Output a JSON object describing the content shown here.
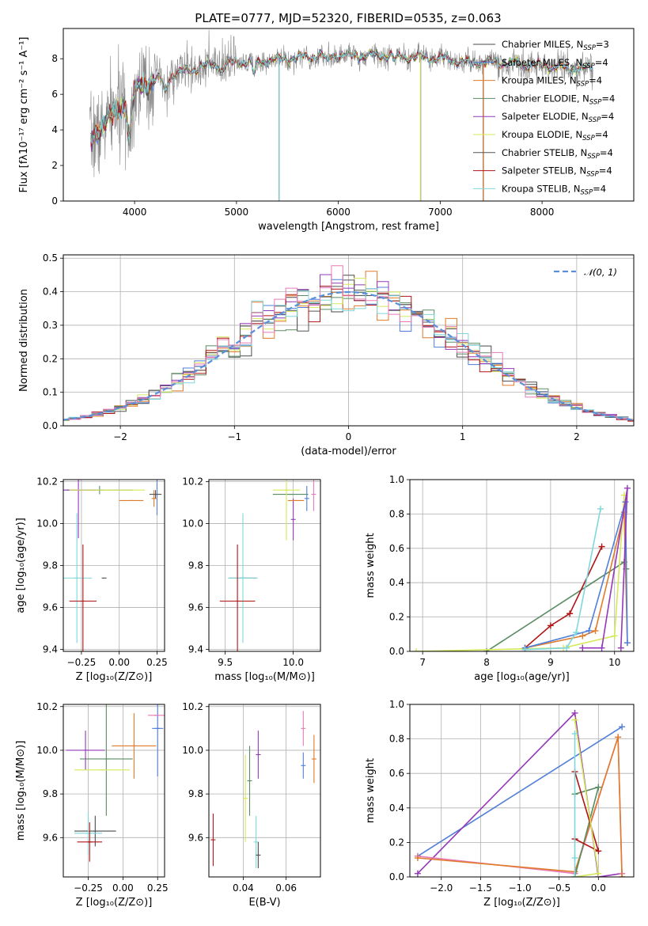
{
  "figure": {
    "title": "PLATE=0777, MJD=52320, FIBERID=0535, z=0.063"
  },
  "colors": {
    "Chabrier MILES": "#4a4a4a",
    "Salpeter MILES": "#4f7fd8",
    "Kroupa MILES": "#e07b2a",
    "Chabrier ELODIE": "#5a8c63",
    "Salpeter ELODIE": "#9438b8",
    "Kroupa ELODIE": "#d5e85a",
    "Chabrier STELIB": "#555555",
    "Salpeter STELIB": "#b01515",
    "Kroupa STELIB": "#7fd7dc",
    "data": "#888888",
    "gauss": "#5b8fd9",
    "pink": "#e87ab8"
  },
  "chart_data": [
    {
      "id": "spectrum",
      "type": "line",
      "xlabel": "wavelength [Angstrom, rest frame]",
      "ylabel": "Flux [fλ10⁻¹⁷ erg cm⁻² s⁻¹ A⁻¹]",
      "xlim": [
        3300,
        8900
      ],
      "ylim": [
        0,
        9.7
      ],
      "xticks": [
        4000,
        5000,
        6000,
        7000,
        8000
      ],
      "yticks": [
        0,
        2,
        4,
        6,
        8
      ],
      "grid": false,
      "legend_position": "right",
      "legend": [
        {
          "model": "Chabrier MILES",
          "text": "Chabrier MILES, N",
          "sub": "SSP",
          "suffix": "=3"
        },
        {
          "model": "Salpeter MILES",
          "text": "Salpeter MILES, N",
          "sub": "SSP",
          "suffix": "=4"
        },
        {
          "model": "Kroupa MILES",
          "text": "Kroupa MILES, N",
          "sub": "SSP",
          "suffix": "=4"
        },
        {
          "model": "Chabrier ELODIE",
          "text": "Chabrier ELODIE, N",
          "sub": "SSP",
          "suffix": "=4"
        },
        {
          "model": "Salpeter ELODIE",
          "text": "Salpeter ELODIE, N",
          "sub": "SSP",
          "suffix": "=4"
        },
        {
          "model": "Kroupa ELODIE",
          "text": "Kroupa ELODIE, N",
          "sub": "SSP",
          "suffix": "=4"
        },
        {
          "model": "Chabrier STELIB",
          "text": "Chabrier STELIB, N",
          "sub": "SSP",
          "suffix": "=4"
        },
        {
          "model": "Salpeter STELIB",
          "text": "Salpeter STELIB, N",
          "sub": "SSP",
          "suffix": "=4"
        },
        {
          "model": "Kroupa STELIB",
          "text": "Kroupa STELIB, N",
          "sub": "SSP",
          "suffix": "=4"
        }
      ],
      "continuum": [
        [
          3570,
          3.4
        ],
        [
          3650,
          4.0
        ],
        [
          3750,
          4.7
        ],
        [
          3850,
          5.2
        ],
        [
          3950,
          5.6
        ],
        [
          4000,
          6.2
        ],
        [
          4100,
          6.6
        ],
        [
          4200,
          6.8
        ],
        [
          4300,
          6.9
        ],
        [
          4500,
          7.3
        ],
        [
          4700,
          7.6
        ],
        [
          5000,
          7.8
        ],
        [
          5200,
          7.85
        ],
        [
          5500,
          8.0
        ],
        [
          5700,
          8.1
        ],
        [
          5900,
          8.25
        ],
        [
          6100,
          8.15
        ],
        [
          6300,
          8.2
        ],
        [
          6500,
          8.2
        ],
        [
          6700,
          8.1
        ],
        [
          6900,
          8.05
        ],
        [
          7100,
          7.95
        ],
        [
          7300,
          7.75
        ],
        [
          7500,
          7.8
        ],
        [
          7700,
          7.75
        ],
        [
          8000,
          7.6
        ],
        [
          8300,
          7.45
        ],
        [
          8500,
          7.5
        ]
      ],
      "dips": [
        {
          "x": 3950,
          "depth": 2.0
        },
        {
          "x": 4300,
          "depth": 0.8
        },
        {
          "x": 4860,
          "depth": 0.4
        },
        {
          "x": 5175,
          "depth": 0.7
        },
        {
          "x": 5890,
          "depth": 0.5
        },
        {
          "x": 6560,
          "depth": 0.3
        }
      ],
      "data_spikes_to_zero": [
        5420,
        6810,
        7420
      ],
      "model_spikes": [
        {
          "x": 5415,
          "model": "Kroupa STELIB"
        },
        {
          "x": 6805,
          "model": "Kroupa ELODIE"
        },
        {
          "x": 7425,
          "model": "Kroupa MILES"
        }
      ]
    },
    {
      "id": "residuals",
      "type": "histogram",
      "xlabel": "(data-model)/error",
      "ylabel": "Normed distribution",
      "xlim": [
        -2.5,
        2.5
      ],
      "ylim": [
        0,
        0.51
      ],
      "xticks": [
        -2,
        -1,
        0,
        1,
        2
      ],
      "yticks": [
        0.0,
        0.1,
        0.2,
        0.3,
        0.4,
        0.5
      ],
      "grid": true,
      "legend_position": "top-right",
      "legend": [
        "𝒩(0, 1)"
      ],
      "bin_width": 0.1,
      "sigma": 1,
      "mean": 0
    },
    {
      "id": "z-age",
      "type": "errorbar",
      "xlabel": "Z [log₁₀(Z/Z⊙)]",
      "ylabel": "age  [log₁₀(age/yr)]",
      "xlim": [
        -0.37,
        0.3
      ],
      "ylim": [
        9.39,
        10.21
      ],
      "xticks": [
        -0.25,
        0.0,
        0.25
      ],
      "yticks": [
        9.4,
        9.6,
        9.8,
        10.0,
        10.2
      ],
      "grid": true,
      "points": [
        {
          "model": "Chabrier MILES",
          "x": -0.1,
          "xerr": 0.0,
          "y": 9.74,
          "yerr": 0.0
        },
        {
          "model": "Kroupa STELIB",
          "x": -0.28,
          "xerr": 0.1,
          "y": 9.74,
          "yerr": 0.31
        },
        {
          "model": "Salpeter STELIB",
          "x": -0.24,
          "xerr": 0.09,
          "y": 9.63,
          "yerr": 0.27
        },
        {
          "model": "Chabrier ELODIE",
          "x": -0.13,
          "xerr": 0.22,
          "y": 10.16,
          "yerr": 0.02
        },
        {
          "model": "Salpeter ELODIE",
          "x": -0.27,
          "xerr": 0.12,
          "y": 10.16,
          "yerr": 0.23
        },
        {
          "model": "Kroupa ELODIE",
          "x": -0.08,
          "xerr": 0.25,
          "y": 10.16,
          "yerr": 0.0
        },
        {
          "model": "Kroupa MILES",
          "x": 0.23,
          "xerr": 0.0,
          "y": 10.12,
          "yerr": 0.04
        },
        {
          "model": "Salpeter MILES",
          "x": 0.25,
          "xerr": 0.0,
          "y": 10.14,
          "yerr": 0.1
        },
        {
          "model": "Chabrier STELIB",
          "x": 0.24,
          "xerr": 0.04,
          "y": 10.14,
          "yerr": 0.02
        },
        {
          "model": "Kroupa MILES",
          "x": 0.08,
          "xerr": 0.08,
          "y": 10.11,
          "yerr": 0.0
        }
      ]
    },
    {
      "id": "mass-age",
      "type": "errorbar",
      "xlabel": "mass [log₁₀(M/M⊙)]",
      "ylabel": "",
      "xlim": [
        9.38,
        10.2
      ],
      "ylim": [
        9.39,
        10.21
      ],
      "xticks": [
        9.5,
        10.0
      ],
      "yticks": [
        9.4,
        9.6,
        9.8,
        10.0,
        10.2
      ],
      "grid": true,
      "points": [
        {
          "model": "Chabrier MILES",
          "x": 9.63,
          "xerr": 0.1,
          "y": 9.74,
          "yerr": 0.0
        },
        {
          "model": "Kroupa STELIB",
          "x": 9.63,
          "xerr": 0.11,
          "y": 9.74,
          "yerr": 0.31
        },
        {
          "model": "Salpeter STELIB",
          "x": 9.59,
          "xerr": 0.13,
          "y": 9.63,
          "yerr": 0.27
        },
        {
          "model": "Chabrier ELODIE",
          "x": 9.98,
          "xerr": 0.13,
          "y": 10.14,
          "yerr": 0.0
        },
        {
          "model": "Salpeter ELODIE",
          "x": 10.0,
          "xerr": 0.0,
          "y": 10.02,
          "yerr": 0.1
        },
        {
          "model": "Kroupa ELODIE",
          "x": 9.95,
          "xerr": 0.1,
          "y": 10.16,
          "yerr": 0.24
        },
        {
          "model": "Kroupa MILES",
          "x": 10.02,
          "xerr": 0.06,
          "y": 10.11,
          "yerr": 0.0
        },
        {
          "model": "Salpeter MILES",
          "x": 10.1,
          "xerr": 0.0,
          "y": 10.12,
          "yerr": 0.06
        },
        {
          "model": "pink",
          "x": 10.15,
          "xerr": 0.0,
          "y": 10.14,
          "yerr": 0.08
        }
      ]
    },
    {
      "id": "age-weight",
      "type": "line",
      "xlabel": "age  [log₁₀(age/yr)]",
      "ylabel": "mass weight",
      "xlim": [
        6.8,
        10.3
      ],
      "ylim": [
        0,
        1.0
      ],
      "xticks": [
        7,
        8,
        9,
        10
      ],
      "yticks": [
        0.0,
        0.2,
        0.4,
        0.6,
        0.8,
        1.0
      ],
      "grid": true,
      "series": [
        {
          "model": "Chabrier ELODIE",
          "points": [
            [
              8.0,
              0.0
            ],
            [
              10.15,
              0.52
            ],
            [
              10.18,
              0.48
            ]
          ]
        },
        {
          "model": "Salpeter STELIB",
          "points": [
            [
              8.6,
              0.02
            ],
            [
              9.0,
              0.15
            ],
            [
              9.3,
              0.22
            ],
            [
              9.8,
              0.61
            ]
          ]
        },
        {
          "model": "Kroupa ELODIE",
          "points": [
            [
              6.9,
              0.0
            ],
            [
              9.2,
              0.02
            ],
            [
              10.0,
              0.09
            ],
            [
              10.15,
              0.91
            ]
          ]
        },
        {
          "model": "Kroupa MILES",
          "points": [
            [
              8.6,
              0.02
            ],
            [
              9.5,
              0.09
            ],
            [
              9.7,
              0.12
            ],
            [
              10.15,
              0.81
            ],
            [
              10.2,
              0.05
            ]
          ]
        },
        {
          "model": "Salpeter MILES",
          "points": [
            [
              8.6,
              0.02
            ],
            [
              9.6,
              0.12
            ],
            [
              10.17,
              0.87
            ],
            [
              10.2,
              0.05
            ]
          ]
        },
        {
          "model": "Salpeter ELODIE",
          "points": [
            [
              9.5,
              0.02
            ],
            [
              9.8,
              0.02
            ],
            [
              10.2,
              0.95
            ],
            [
              10.1,
              0.02
            ]
          ]
        },
        {
          "model": "Kroupa STELIB",
          "points": [
            [
              8.6,
              0.01
            ],
            [
              9.25,
              0.02
            ],
            [
              9.4,
              0.11
            ],
            [
              9.78,
              0.83
            ]
          ]
        }
      ]
    },
    {
      "id": "z-mass",
      "type": "errorbar",
      "xlabel": "Z [log₁₀(Z/Z⊙)]",
      "ylabel": "mass [log₁₀(M/M⊙)]",
      "xlim": [
        -0.43,
        0.3
      ],
      "ylim": [
        9.42,
        10.21
      ],
      "xticks": [
        -0.25,
        0.0,
        0.25
      ],
      "yticks": [
        9.6,
        9.8,
        10.0,
        10.2
      ],
      "grid": true,
      "points": [
        {
          "model": "Chabrier MILES",
          "x": -0.2,
          "xerr": 0.15,
          "y": 9.63,
          "yerr": 0.07
        },
        {
          "model": "Kroupa STELIB",
          "x": -0.25,
          "xerr": 0.1,
          "y": 9.62,
          "yerr": 0.1
        },
        {
          "model": "Salpeter STELIB",
          "x": -0.24,
          "xerr": 0.09,
          "y": 9.58,
          "yerr": 0.09
        },
        {
          "model": "Chabrier ELODIE",
          "x": -0.12,
          "xerr": 0.19,
          "y": 9.96,
          "yerr": 0.26
        },
        {
          "model": "Salpeter ELODIE",
          "x": -0.27,
          "xerr": 0.14,
          "y": 10.0,
          "yerr": 0.09
        },
        {
          "model": "Kroupa ELODIE",
          "x": -0.15,
          "xerr": 0.2,
          "y": 9.91,
          "yerr": 0.0
        },
        {
          "model": "Kroupa MILES",
          "x": 0.08,
          "xerr": 0.16,
          "y": 10.02,
          "yerr": 0.15
        },
        {
          "model": "Salpeter MILES",
          "x": 0.25,
          "xerr": 0.04,
          "y": 10.1,
          "yerr": 0.22
        },
        {
          "model": "pink",
          "x": 0.24,
          "xerr": 0.06,
          "y": 10.16,
          "yerr": 0.0
        }
      ]
    },
    {
      "id": "ebv",
      "type": "errorbar",
      "xlabel": "E(B-V)",
      "ylabel": "",
      "xlim": [
        0.024,
        0.076
      ],
      "ylim": [
        9.42,
        10.21
      ],
      "xticks": [
        0.04,
        0.06
      ],
      "yticks": [
        9.6,
        9.8,
        10.0,
        10.2
      ],
      "grid": true,
      "points": [
        {
          "model": "Salpeter STELIB",
          "x": 0.026,
          "y": 9.59,
          "yerr": 0.12
        },
        {
          "model": "Kroupa ELODIE",
          "x": 0.041,
          "y": 9.78,
          "yerr": 0.2
        },
        {
          "model": "Chabrier ELODIE",
          "x": 0.043,
          "y": 9.86,
          "yerr": 0.16
        },
        {
          "model": "Kroupa STELIB",
          "x": 0.046,
          "y": 9.58,
          "yerr": 0.12
        },
        {
          "model": "Salpeter ELODIE",
          "x": 0.047,
          "y": 9.98,
          "yerr": 0.11
        },
        {
          "model": "Chabrier MILES",
          "x": 0.047,
          "y": 9.52,
          "yerr": 0.06
        },
        {
          "model": "pink",
          "x": 0.068,
          "y": 10.1,
          "yerr": 0.08
        },
        {
          "model": "Salpeter MILES",
          "x": 0.068,
          "y": 9.93,
          "yerr": 0.06
        },
        {
          "model": "Kroupa MILES",
          "x": 0.073,
          "y": 9.96,
          "yerr": 0.11
        }
      ]
    },
    {
      "id": "z-weight",
      "type": "line",
      "xlabel": "Z [log₁₀(Z/Z⊙)]",
      "ylabel": "mass weight",
      "xlim": [
        -2.4,
        0.45
      ],
      "ylim": [
        0,
        1.0
      ],
      "xticks": [
        -2.0,
        -1.5,
        -1.0,
        -0.5,
        0.0
      ],
      "yticks": [
        0.0,
        0.2,
        0.4,
        0.6,
        0.8,
        1.0
      ],
      "grid": true,
      "series": [
        {
          "model": "Salpeter MILES",
          "points": [
            [
              -2.3,
              0.12
            ],
            [
              0.3,
              0.87
            ]
          ]
        },
        {
          "model": "Salpeter ELODIE",
          "points": [
            [
              -2.3,
              0.02
            ],
            [
              -0.3,
              0.95
            ],
            [
              0.0,
              0.0
            ],
            [
              0.3,
              0.02
            ]
          ]
        },
        {
          "model": "pink",
          "points": [
            [
              -2.3,
              0.12
            ],
            [
              -0.3,
              0.02
            ],
            [
              0.25,
              0.81
            ],
            [
              0.3,
              0.02
            ]
          ]
        },
        {
          "model": "Kroupa MILES",
          "points": [
            [
              -2.3,
              0.11
            ],
            [
              -0.3,
              0.03
            ],
            [
              0.25,
              0.81
            ],
            [
              0.3,
              0.0
            ]
          ]
        },
        {
          "model": "Chabrier ELODIE",
          "points": [
            [
              -0.3,
              0.0
            ],
            [
              0.0,
              0.52
            ],
            [
              -0.3,
              0.48
            ]
          ]
        },
        {
          "model": "Salpeter STELIB",
          "points": [
            [
              -0.3,
              0.61
            ],
            [
              0.0,
              0.15
            ],
            [
              -0.3,
              0.22
            ]
          ]
        },
        {
          "model": "Kroupa ELODIE",
          "points": [
            [
              -0.3,
              0.91
            ],
            [
              0.0,
              0.02
            ],
            [
              -0.3,
              0.0
            ]
          ]
        },
        {
          "model": "Kroupa STELIB",
          "points": [
            [
              -0.3,
              0.83
            ],
            [
              -0.3,
              0.0
            ],
            [
              -0.3,
              0.11
            ]
          ]
        }
      ]
    }
  ]
}
